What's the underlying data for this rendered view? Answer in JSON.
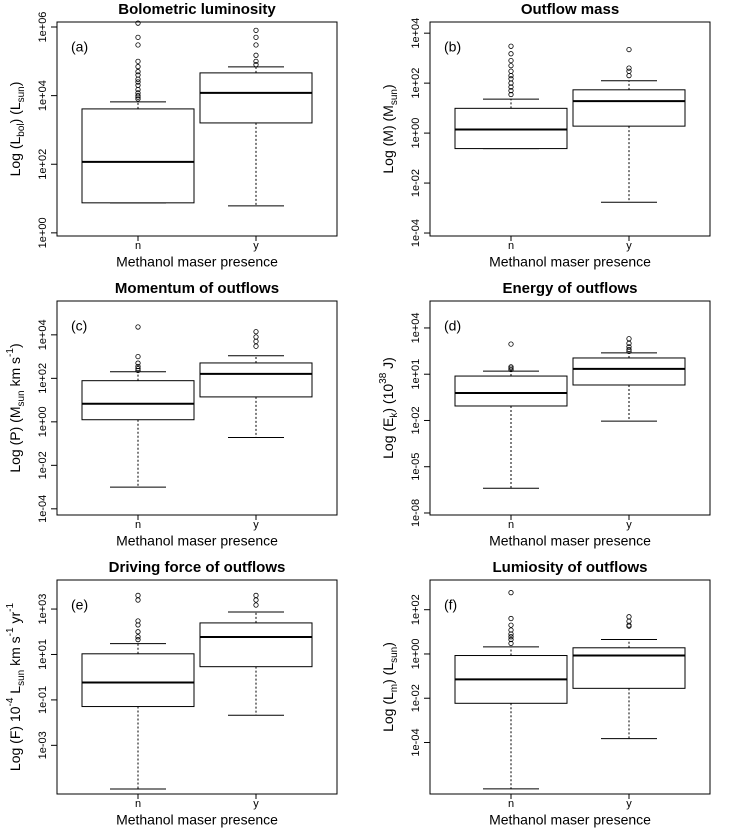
{
  "chart_data": [
    {
      "type": "box",
      "title": "Bolometric luminosity",
      "panel_label": "(a)",
      "log_y": true,
      "ylabel": [
        "Log (L",
        {
          "text": "bol",
          "shift": "sub"
        },
        ") (L",
        {
          "text": "sun",
          "shift": "sub"
        },
        ")"
      ],
      "xlabel": "Methanol maser presence",
      "categories": [
        "n",
        "y"
      ],
      "ylim": [
        0.81,
        1400000
      ],
      "yticks": [
        {
          "value": 1,
          "label": "1e+00"
        },
        {
          "value": 100,
          "label": "1e+02"
        },
        {
          "value": 10000,
          "label": "1e+04"
        },
        {
          "value": 1000000,
          "label": "1e+06"
        }
      ],
      "boxes": [
        {
          "low": 7.5,
          "q1": 7.5,
          "median": 117,
          "q3": 4100,
          "high": 6600,
          "outliers": [
            1300000,
            500000,
            300000,
            100000,
            70000,
            50000,
            40000,
            30000,
            25000,
            20000,
            15000,
            12000,
            10000,
            9000,
            8000
          ]
        },
        {
          "low": 6.1,
          "q1": 1600,
          "median": 12000,
          "q3": 46000,
          "high": 69000,
          "outliers": [
            800000,
            500000,
            300000,
            150000,
            100000,
            80000
          ]
        }
      ]
    },
    {
      "type": "box",
      "title": "Outflow mass",
      "panel_label": "(b)",
      "log_y": true,
      "ylabel": [
        "Log (M) (M",
        {
          "text": "sun",
          "shift": "sub"
        },
        ")"
      ],
      "xlabel": "Methanol maser presence",
      "categories": [
        "n",
        "y"
      ],
      "ylim": [
        7.6e-05,
        28000
      ],
      "yticks": [
        {
          "value": 0.0001,
          "label": "1e-04"
        },
        {
          "value": 0.01,
          "label": "1e-02"
        },
        {
          "value": 1,
          "label": "1e+00"
        },
        {
          "value": 100,
          "label": "1e+02"
        },
        {
          "value": 10000,
          "label": "1e+04"
        }
      ],
      "boxes": [
        {
          "low": 0.24,
          "q1": 0.24,
          "median": 1.4,
          "q3": 9.8,
          "high": 23,
          "outliers": [
            3000,
            1500,
            800,
            500,
            300,
            200,
            150,
            100,
            70,
            50,
            35
          ]
        },
        {
          "low": 0.0017,
          "q1": 1.9,
          "median": 19,
          "q3": 54,
          "high": 125,
          "outliers": [
            2200,
            400,
            300,
            200
          ]
        }
      ]
    },
    {
      "type": "box",
      "title": "Momentum of outflows",
      "panel_label": "(c)",
      "log_y": true,
      "ylabel": [
        "Log (P)   (M",
        {
          "text": "sun",
          "shift": "sub"
        },
        " km s",
        {
          "text": "-1",
          "shift": "sup"
        },
        ")"
      ],
      "xlabel": "Methanol maser presence",
      "categories": [
        "n",
        "y"
      ],
      "ylim": [
        5.2e-05,
        360000
      ],
      "yticks": [
        {
          "value": 0.0001,
          "label": "1e-04"
        },
        {
          "value": 0.01,
          "label": "1e-02"
        },
        {
          "value": 1,
          "label": "1e+00"
        },
        {
          "value": 100,
          "label": "1e+02"
        },
        {
          "value": 10000,
          "label": "1e+04"
        }
      ],
      "boxes": [
        {
          "low": 0.001,
          "q1": 1.25,
          "median": 6.8,
          "q3": 78,
          "high": 200,
          "outliers": [
            23000,
            1000,
            500,
            350,
            280,
            230
          ]
        },
        {
          "low": 0.19,
          "q1": 14,
          "median": 160,
          "q3": 510,
          "high": 1100,
          "outliers": [
            14000,
            8000,
            5000,
            3000
          ]
        }
      ]
    },
    {
      "type": "box",
      "title": "Energy of outflows",
      "panel_label": "(d)",
      "log_y": true,
      "ylabel": [
        "Log (E",
        {
          "text": "k",
          "shift": "sub"
        },
        ")  (10",
        {
          "text": "38",
          "shift": "sup"
        },
        " J)"
      ],
      "xlabel": "Methanol maser presence",
      "categories": [
        "n",
        "y"
      ],
      "ylim": [
        7.4e-09,
        560000
      ],
      "yticks": [
        {
          "value": 1e-08,
          "label": "1e-08"
        },
        {
          "value": 1e-05,
          "label": "1e-05"
        },
        {
          "value": 0.01,
          "label": "1e-02"
        },
        {
          "value": 10,
          "label": "1e+01"
        },
        {
          "value": 10000,
          "label": "1e+04"
        }
      ],
      "boxes": [
        {
          "low": 4e-07,
          "q1": 0.087,
          "median": 0.6,
          "q3": 7.6,
          "high": 16,
          "outliers": [
            900,
            30,
            25,
            20
          ]
        },
        {
          "low": 0.009,
          "q1": 2,
          "median": 22,
          "q3": 113,
          "high": 240,
          "outliers": [
            2000,
            1000,
            600,
            400,
            300
          ]
        }
      ]
    },
    {
      "type": "box",
      "title": "Driving force of outflows",
      "panel_label": "(e)",
      "log_y": true,
      "ylabel": [
        "Log (F)  10",
        {
          "text": "-4",
          "shift": "sup"
        },
        " L",
        {
          "text": "sun",
          "shift": "sub"
        },
        " km s",
        {
          "text": "-1",
          "shift": "sup"
        },
        " yr",
        {
          "text": "-1",
          "shift": "sup"
        }
      ],
      "xlabel": "Methanol maser presence",
      "categories": [
        "n",
        "y"
      ],
      "ylim": [
        7.2e-06,
        19000
      ],
      "yticks": [
        {
          "value": 0.001,
          "label": "1e-03"
        },
        {
          "value": 0.1,
          "label": "1e-01"
        },
        {
          "value": 10,
          "label": "1e+01"
        },
        {
          "value": 1000,
          "label": "1e+03"
        }
      ],
      "boxes": [
        {
          "low": 1.2e-05,
          "q1": 0.051,
          "median": 0.58,
          "q3": 10.7,
          "high": 30,
          "outliers": [
            4000,
            2500,
            300,
            200,
            100,
            60,
            45
          ]
        },
        {
          "low": 0.021,
          "q1": 2.9,
          "median": 59,
          "q3": 245,
          "high": 740,
          "outliers": [
            4000,
            2500,
            1500
          ]
        }
      ]
    },
    {
      "type": "box",
      "title": "Lumiosity of outflows",
      "panel_label": "(f)",
      "log_y": true,
      "ylabel": [
        "Log (L",
        {
          "text": "m",
          "shift": "sub"
        },
        ")  (L",
        {
          "text": "sun",
          "shift": "sub"
        },
        ")"
      ],
      "xlabel": "Methanol maser presence",
      "categories": [
        "n",
        "y"
      ],
      "ylim": [
        4.7e-07,
        2200
      ],
      "yticks": [
        {
          "value": 0.0001,
          "label": "1e-04"
        },
        {
          "value": 0.01,
          "label": "1e-02"
        },
        {
          "value": 1,
          "label": "1e+00"
        },
        {
          "value": 100,
          "label": "1e+02"
        }
      ],
      "boxes": [
        {
          "low": 8e-07,
          "q1": 0.0059,
          "median": 0.071,
          "q3": 0.85,
          "high": 2.1,
          "outliers": [
            590,
            40,
            20,
            12,
            8,
            6,
            4.5,
            3
          ]
        },
        {
          "low": 0.00015,
          "q1": 0.028,
          "median": 0.85,
          "q3": 1.9,
          "high": 4.5,
          "outliers": [
            48,
            30,
            20,
            18
          ]
        }
      ]
    }
  ]
}
